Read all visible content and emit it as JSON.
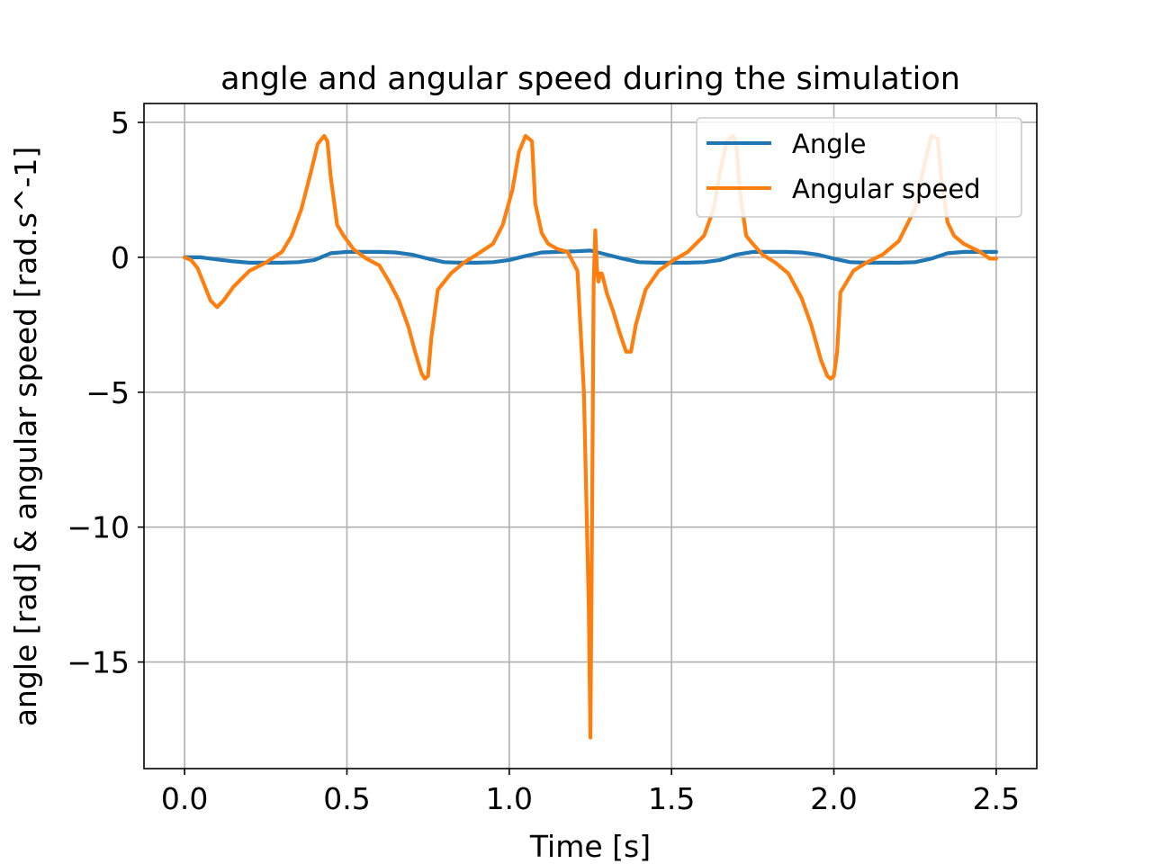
{
  "chart_data": {
    "type": "line",
    "title": "angle and angular speed during the simulation",
    "xlabel": "Time [s]",
    "ylabel": "angle [rad] & angular speed [rad.s^-1]",
    "xlim": [
      -0.125,
      2.625
    ],
    "ylim": [
      -18.95,
      5.7
    ],
    "xticks": [
      0.0,
      0.5,
      1.0,
      1.5,
      2.0,
      2.5
    ],
    "xtick_labels": [
      "0.0",
      "0.5",
      "1.0",
      "1.5",
      "2.0",
      "2.5"
    ],
    "yticks": [
      5,
      0,
      -5,
      -10,
      -15
    ],
    "ytick_labels": [
      "5",
      "0",
      "−5",
      "−10",
      "−15"
    ],
    "grid": true,
    "legend_position": "top-right",
    "series": [
      {
        "name": "Angle",
        "color": "#1f77b4",
        "x": [
          0.0,
          0.05,
          0.1,
          0.15,
          0.2,
          0.25,
          0.3,
          0.35,
          0.4,
          0.42,
          0.45,
          0.5,
          0.55,
          0.6,
          0.65,
          0.7,
          0.75,
          0.8,
          0.85,
          0.9,
          0.95,
          1.0,
          1.05,
          1.1,
          1.15,
          1.2,
          1.25,
          1.3,
          1.35,
          1.4,
          1.45,
          1.5,
          1.55,
          1.6,
          1.65,
          1.7,
          1.75,
          1.8,
          1.85,
          1.9,
          1.95,
          2.0,
          2.05,
          2.1,
          2.15,
          2.2,
          2.25,
          2.3,
          2.35,
          2.4,
          2.45,
          2.5
        ],
        "y": [
          0.0,
          0.0,
          -0.08,
          -0.15,
          -0.2,
          -0.2,
          -0.2,
          -0.18,
          -0.1,
          0.0,
          0.15,
          0.2,
          0.2,
          0.2,
          0.18,
          0.1,
          -0.05,
          -0.18,
          -0.2,
          -0.2,
          -0.18,
          -0.1,
          0.05,
          0.18,
          0.2,
          0.22,
          0.25,
          0.1,
          -0.05,
          -0.18,
          -0.2,
          -0.2,
          -0.2,
          -0.18,
          -0.1,
          0.1,
          0.2,
          0.2,
          0.2,
          0.18,
          0.1,
          -0.05,
          -0.18,
          -0.2,
          -0.2,
          -0.2,
          -0.18,
          -0.05,
          0.15,
          0.2,
          0.2,
          0.2
        ]
      },
      {
        "name": "Angular speed",
        "color": "#ff7f0e",
        "x": [
          0.0,
          0.02,
          0.04,
          0.06,
          0.08,
          0.1,
          0.12,
          0.15,
          0.2,
          0.25,
          0.3,
          0.33,
          0.36,
          0.39,
          0.41,
          0.43,
          0.44,
          0.45,
          0.47,
          0.49,
          0.52,
          0.56,
          0.6,
          0.63,
          0.66,
          0.69,
          0.71,
          0.73,
          0.74,
          0.75,
          0.76,
          0.78,
          0.8,
          0.82,
          0.86,
          0.9,
          0.95,
          0.98,
          1.01,
          1.03,
          1.05,
          1.07,
          1.08,
          1.1,
          1.12,
          1.15,
          1.18,
          1.21,
          1.23,
          1.245,
          1.25,
          1.255,
          1.26,
          1.265,
          1.27,
          1.275,
          1.28,
          1.285,
          1.29,
          1.3,
          1.32,
          1.34,
          1.36,
          1.375,
          1.39,
          1.42,
          1.46,
          1.5,
          1.55,
          1.6,
          1.63,
          1.65,
          1.67,
          1.69,
          1.7,
          1.71,
          1.73,
          1.75,
          1.78,
          1.82,
          1.86,
          1.9,
          1.93,
          1.96,
          1.98,
          1.99,
          2.0,
          2.01,
          2.02,
          2.04,
          2.06,
          2.1,
          2.15,
          2.2,
          2.25,
          2.28,
          2.3,
          2.32,
          2.33,
          2.35,
          2.37,
          2.4,
          2.45,
          2.48,
          2.5
        ],
        "y": [
          0.0,
          -0.1,
          -0.4,
          -1.0,
          -1.6,
          -1.85,
          -1.6,
          -1.1,
          -0.5,
          -0.2,
          0.2,
          0.8,
          1.8,
          3.2,
          4.2,
          4.5,
          4.3,
          3.0,
          1.2,
          0.8,
          0.3,
          -0.05,
          -0.3,
          -0.9,
          -1.6,
          -2.6,
          -3.5,
          -4.3,
          -4.5,
          -4.4,
          -3.0,
          -1.2,
          -0.9,
          -0.6,
          -0.2,
          0.1,
          0.5,
          1.2,
          2.5,
          3.9,
          4.5,
          4.3,
          2.0,
          0.9,
          0.5,
          0.3,
          0.2,
          -0.5,
          -5.0,
          -13.0,
          -17.8,
          -10.0,
          -1.0,
          1.0,
          -0.4,
          -0.9,
          -0.6,
          -0.6,
          -0.8,
          -1.3,
          -2.0,
          -2.8,
          -3.5,
          -3.5,
          -2.5,
          -1.2,
          -0.5,
          -0.15,
          0.2,
          0.8,
          1.8,
          3.2,
          4.3,
          4.5,
          4.2,
          2.5,
          0.8,
          0.5,
          0.1,
          -0.2,
          -0.6,
          -1.5,
          -2.5,
          -3.8,
          -4.4,
          -4.5,
          -4.4,
          -3.5,
          -1.3,
          -0.9,
          -0.5,
          -0.2,
          0.1,
          0.6,
          1.8,
          3.5,
          4.5,
          4.4,
          3.0,
          1.3,
          0.8,
          0.5,
          0.2,
          -0.05,
          -0.05
        ]
      }
    ]
  }
}
